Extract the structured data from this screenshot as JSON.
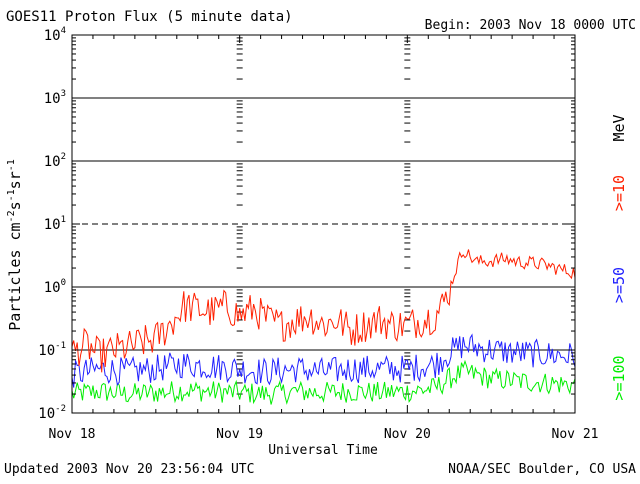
{
  "chart_data": {
    "type": "line",
    "title": "GOES11 Proton Flux (5 minute data)",
    "begin_label": "Begin: 2003 Nov 18 0000 UTC",
    "xlabel": "Universal Time",
    "ylabel": "Particles cm-2s-1sr-1",
    "ylabel_parts": {
      "base": "Particles cm",
      "sup1": "-2",
      "mid": "s",
      "sup2": "-1",
      "tail": "sr",
      "sup3": "-1"
    },
    "yscale": "log",
    "ylim": [
      0.01,
      10000
    ],
    "xlim": [
      0,
      72
    ],
    "x_unit": "hours since 2003 Nov 18 00:00 UTC",
    "x_ticks": [
      {
        "value": 0,
        "label": "Nov 18"
      },
      {
        "value": 24,
        "label": "Nov 19"
      },
      {
        "value": 48,
        "label": "Nov 20"
      },
      {
        "value": 72,
        "label": "Nov 21"
      }
    ],
    "y_ticks": [
      {
        "value": 0.01,
        "base": "10",
        "exp": "-2"
      },
      {
        "value": 0.1,
        "base": "10",
        "exp": "-1"
      },
      {
        "value": 1,
        "base": "10",
        "exp": "0"
      },
      {
        "value": 10,
        "base": "10",
        "exp": "1"
      },
      {
        "value": 100,
        "base": "10",
        "exp": "2"
      },
      {
        "value": 1000,
        "base": "10",
        "exp": "3"
      },
      {
        "value": 10000,
        "base": "10",
        "exp": "4"
      }
    ],
    "threshold_lines": [
      1000,
      100,
      10,
      1,
      0.1
    ],
    "energy_unit": "MeV",
    "series": [
      {
        "name": ">=10",
        "color": "#ff2000",
        "x": [
          0,
          2,
          4,
          6,
          8,
          10,
          12,
          14,
          15,
          16,
          18,
          20,
          22,
          24,
          26,
          28,
          30,
          32,
          34,
          36,
          38,
          40,
          42,
          44,
          46,
          48,
          50,
          52,
          53,
          54,
          55,
          56,
          57,
          58,
          60,
          62,
          64,
          66,
          68,
          70,
          72
        ],
        "values": [
          0.09,
          0.12,
          0.08,
          0.1,
          0.11,
          0.13,
          0.15,
          0.25,
          0.35,
          0.5,
          0.45,
          0.4,
          0.5,
          0.35,
          0.45,
          0.3,
          0.25,
          0.3,
          0.35,
          0.25,
          0.3,
          0.2,
          0.25,
          0.3,
          0.25,
          0.25,
          0.3,
          0.35,
          0.5,
          0.9,
          2.0,
          4.0,
          3.0,
          2.5,
          2.6,
          2.8,
          2.5,
          2.4,
          2.2,
          1.9,
          1.7
        ]
      },
      {
        "name": ">=50",
        "color": "#2020ff",
        "x": [
          0,
          4,
          8,
          12,
          16,
          20,
          24,
          28,
          32,
          36,
          40,
          44,
          48,
          50,
          52,
          54,
          56,
          58,
          60,
          64,
          68,
          72
        ],
        "values": [
          0.04,
          0.05,
          0.045,
          0.05,
          0.06,
          0.055,
          0.05,
          0.045,
          0.05,
          0.045,
          0.05,
          0.05,
          0.05,
          0.055,
          0.06,
          0.09,
          0.12,
          0.11,
          0.1,
          0.09,
          0.085,
          0.08
        ]
      },
      {
        "name": ">=100",
        "color": "#00ee00",
        "x": [
          0,
          4,
          8,
          12,
          16,
          20,
          24,
          28,
          32,
          36,
          40,
          44,
          48,
          50,
          52,
          54,
          56,
          58,
          60,
          64,
          68,
          72
        ],
        "values": [
          0.02,
          0.022,
          0.02,
          0.021,
          0.023,
          0.022,
          0.021,
          0.02,
          0.022,
          0.021,
          0.022,
          0.021,
          0.022,
          0.023,
          0.025,
          0.035,
          0.045,
          0.04,
          0.035,
          0.032,
          0.03,
          0.028
        ]
      }
    ]
  },
  "footer": {
    "updated": "Updated 2003 Nov 20 23:56:04 UTC",
    "credit": "NOAA/SEC Boulder, CO USA"
  }
}
